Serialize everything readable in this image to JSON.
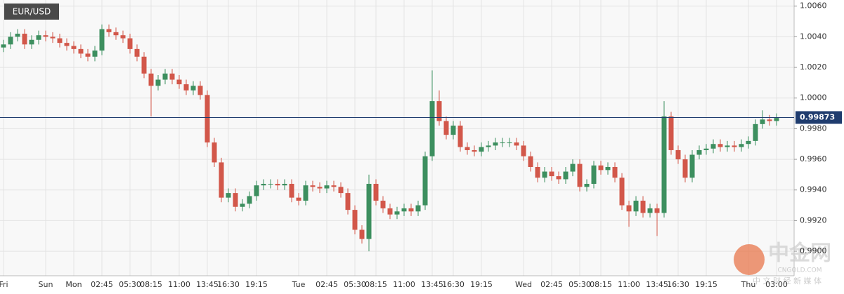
{
  "chart_data": {
    "type": "candlestick",
    "title": "EUR/USD",
    "categories": [
      "Fri",
      null,
      null,
      null,
      null,
      null,
      "Sun",
      null,
      null,
      null,
      "Mon",
      null,
      null,
      null,
      "02:45",
      null,
      null,
      null,
      "05:30",
      null,
      null,
      "08:15",
      null,
      null,
      null,
      "11:00",
      null,
      null,
      null,
      "13:45",
      null,
      null,
      "16:30",
      null,
      null,
      null,
      "19:15",
      null,
      null,
      null,
      null,
      null,
      "Tue",
      null,
      null,
      null,
      "02:45",
      null,
      null,
      null,
      "05:30",
      null,
      null,
      "08:15",
      null,
      null,
      null,
      "11:00",
      null,
      null,
      null,
      "13:45",
      null,
      null,
      "16:30",
      null,
      null,
      null,
      "19:15",
      null,
      null,
      null,
      null,
      null,
      "Wed",
      null,
      null,
      null,
      "02:45",
      null,
      null,
      null,
      "05:30",
      null,
      null,
      "08:15",
      null,
      null,
      null,
      "11:00",
      null,
      null,
      null,
      "13:45",
      null,
      null,
      "16:30",
      null,
      null,
      null,
      "19:15",
      null,
      null,
      null,
      null,
      null,
      "Thu",
      null,
      null,
      null,
      "03:00"
    ],
    "open": [
      1.0033,
      1.0035,
      1.004,
      1.0042,
      1.0035,
      1.0038,
      1.0041,
      1.004,
      1.0039,
      1.0036,
      1.0034,
      1.0032,
      1.0029,
      1.0027,
      1.0031,
      1.0045,
      1.0043,
      1.0041,
      1.0039,
      1.0032,
      1.0027,
      1.0016,
      1.0008,
      1.0012,
      1.0016,
      1.0012,
      1.0009,
      1.0005,
      1.0008,
      1.0002,
      0.9971,
      0.9958,
      0.9935,
      0.9938,
      0.9929,
      0.9931,
      0.9936,
      0.9943,
      0.9944,
      0.9944,
      0.9943,
      0.9944,
      0.9935,
      0.9933,
      0.9943,
      0.9942,
      0.9941,
      0.9943,
      0.9942,
      0.9938,
      0.9927,
      0.9914,
      0.9908,
      0.9944,
      0.9933,
      0.9928,
      0.9924,
      0.9926,
      0.9928,
      0.9926,
      0.993,
      0.9962,
      0.9998,
      0.9985,
      0.9976,
      0.9982,
      0.9968,
      0.9966,
      0.9965,
      0.9968,
      0.9969,
      0.9971,
      0.9971,
      0.9971,
      0.9969,
      0.9962,
      0.9955,
      0.9948,
      0.9952,
      0.9949,
      0.9947,
      0.9952,
      0.9957,
      0.9942,
      0.9944,
      0.9956,
      0.9953,
      0.9955,
      0.9948,
      0.993,
      0.9926,
      0.9933,
      0.9925,
      0.9928,
      0.9925,
      0.9988,
      0.9966,
      0.996,
      0.9948,
      0.9963,
      0.9966,
      0.9967,
      0.997,
      0.9968,
      0.9969,
      0.9968,
      0.997,
      0.9972,
      0.9983,
      0.9986,
      0.9985
    ],
    "high": [
      1.0038,
      1.0043,
      1.0045,
      1.0045,
      1.0041,
      1.0044,
      1.0044,
      1.0043,
      1.0042,
      1.0039,
      1.0037,
      1.0035,
      1.0032,
      1.0034,
      1.0048,
      1.0048,
      1.0046,
      1.0044,
      1.0042,
      1.0035,
      1.003,
      1.0019,
      1.0015,
      1.0019,
      1.0019,
      1.0015,
      1.0012,
      1.0011,
      1.0011,
      1.0005,
      0.9974,
      0.9961,
      0.9941,
      0.9941,
      0.9934,
      0.9939,
      0.9946,
      0.9947,
      0.9947,
      0.9947,
      0.9947,
      0.9947,
      0.9938,
      0.9946,
      0.9946,
      0.9945,
      0.9946,
      0.9946,
      0.9945,
      0.9941,
      0.993,
      0.9917,
      0.995,
      0.9947,
      0.9936,
      0.9931,
      0.9929,
      0.9931,
      0.9931,
      0.9933,
      0.9965,
      1.0018,
      1.0005,
      0.9988,
      0.9985,
      0.9985,
      0.9971,
      0.9969,
      0.9971,
      0.9972,
      0.9974,
      0.9974,
      0.9974,
      0.9974,
      0.9972,
      0.9965,
      0.9958,
      0.9955,
      0.9955,
      0.9952,
      0.9955,
      0.996,
      0.996,
      0.9947,
      0.9959,
      0.9959,
      0.9958,
      0.9958,
      0.9951,
      0.9933,
      0.9936,
      0.9936,
      0.9931,
      0.9931,
      0.9998,
      0.9991,
      0.9969,
      0.9963,
      0.9966,
      0.9969,
      0.997,
      0.9973,
      0.9973,
      0.9972,
      0.9972,
      0.9973,
      0.9975,
      0.9986,
      0.9992,
      0.9989,
      0.999
    ],
    "low": [
      1.003,
      1.0032,
      1.0037,
      1.0032,
      1.0032,
      1.0035,
      1.0037,
      1.0036,
      1.0033,
      1.0031,
      1.0029,
      1.0026,
      1.0024,
      1.0024,
      1.0028,
      1.004,
      1.0038,
      1.0036,
      1.0029,
      1.0024,
      1.0013,
      0.9988,
      1.0005,
      1.0009,
      1.0009,
      1.0006,
      1.0002,
      1.0002,
      0.9999,
      0.9968,
      0.9955,
      0.9932,
      0.9932,
      0.9926,
      0.9926,
      0.9928,
      0.9933,
      0.994,
      0.9941,
      0.994,
      0.994,
      0.9932,
      0.993,
      0.993,
      0.9939,
      0.9938,
      0.9938,
      0.9939,
      0.9935,
      0.9924,
      0.9911,
      0.9905,
      0.99,
      0.993,
      0.9925,
      0.9921,
      0.9921,
      0.9923,
      0.9923,
      0.9923,
      0.9927,
      0.9959,
      0.9982,
      0.9973,
      0.9973,
      0.9965,
      0.9963,
      0.9962,
      0.9962,
      0.9965,
      0.9966,
      0.9968,
      0.9968,
      0.9966,
      0.9959,
      0.9952,
      0.9945,
      0.9945,
      0.9946,
      0.9944,
      0.9944,
      0.9949,
      0.9939,
      0.9939,
      0.9941,
      0.995,
      0.995,
      0.9945,
      0.9927,
      0.9916,
      0.9923,
      0.9922,
      0.9922,
      0.991,
      0.9922,
      0.9963,
      0.9957,
      0.9945,
      0.9945,
      0.996,
      0.9963,
      0.9964,
      0.9965,
      0.9965,
      0.9965,
      0.9965,
      0.9967,
      0.9969,
      0.998,
      0.9982,
      0.9982
    ],
    "close": [
      1.0035,
      1.004,
      1.0042,
      1.0035,
      1.0038,
      1.0041,
      1.004,
      1.0039,
      1.0036,
      1.0034,
      1.0032,
      1.0029,
      1.0027,
      1.0031,
      1.0045,
      1.0043,
      1.0041,
      1.0039,
      1.0032,
      1.0027,
      1.0016,
      1.0008,
      1.0012,
      1.0016,
      1.0012,
      1.0009,
      1.0005,
      1.0008,
      1.0002,
      0.9971,
      0.9958,
      0.9935,
      0.9938,
      0.9929,
      0.9931,
      0.9936,
      0.9943,
      0.9944,
      0.9944,
      0.9943,
      0.9944,
      0.9935,
      0.9933,
      0.9943,
      0.9942,
      0.9941,
      0.9943,
      0.9942,
      0.9938,
      0.9927,
      0.9914,
      0.9908,
      0.9944,
      0.9933,
      0.9928,
      0.9924,
      0.9926,
      0.9928,
      0.9926,
      0.993,
      0.9962,
      0.9998,
      0.9985,
      0.9976,
      0.9982,
      0.9968,
      0.9966,
      0.9965,
      0.9968,
      0.9969,
      0.9971,
      0.9971,
      0.9971,
      0.9969,
      0.9962,
      0.9955,
      0.9948,
      0.9952,
      0.9949,
      0.9947,
      0.9952,
      0.9957,
      0.9942,
      0.9944,
      0.9956,
      0.9953,
      0.9955,
      0.9948,
      0.993,
      0.9926,
      0.9933,
      0.9925,
      0.9928,
      0.9925,
      0.9988,
      0.9966,
      0.996,
      0.9948,
      0.9963,
      0.9966,
      0.9967,
      0.997,
      0.9968,
      0.9969,
      0.9968,
      0.997,
      0.9972,
      0.9983,
      0.9986,
      0.9985,
      0.9987
    ],
    "up_color": "#3d8f5f",
    "down_color": "#d2574a",
    "last_price": 0.99873,
    "last_price_color": "#1f3c6e",
    "ylim": [
      0.9884,
      1.0064
    ],
    "yticks": [
      {
        "value": 0.99,
        "label": "0.9900"
      },
      {
        "value": 0.992,
        "label": "0.9920"
      },
      {
        "value": 0.994,
        "label": "0.9940"
      },
      {
        "value": 0.996,
        "label": "0.9960"
      },
      {
        "value": 0.998,
        "label": "0.9980"
      },
      {
        "value": 1.0,
        "label": "1.0000"
      },
      {
        "value": 1.002,
        "label": "1.0020"
      },
      {
        "value": 1.004,
        "label": "1.0040"
      },
      {
        "value": 1.006,
        "label": "1.0060"
      }
    ],
    "grid": true,
    "watermark": {
      "name": "中金网",
      "site": "CNGOLD.COM",
      "slogan": "中 文 财 经 新 媒 体"
    }
  }
}
